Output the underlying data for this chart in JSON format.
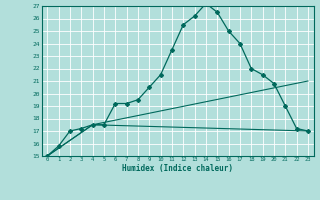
{
  "xlabel": "Humidex (Indice chaleur)",
  "bg_color": "#b2dfdb",
  "grid_color": "#ffffff",
  "line_color": "#00695c",
  "xlim": [
    -0.5,
    23.5
  ],
  "ylim": [
    15,
    27
  ],
  "xticks": [
    0,
    1,
    2,
    3,
    4,
    5,
    6,
    7,
    8,
    9,
    10,
    11,
    12,
    13,
    14,
    15,
    16,
    17,
    18,
    19,
    20,
    21,
    22,
    23
  ],
  "yticks": [
    15,
    16,
    17,
    18,
    19,
    20,
    21,
    22,
    23,
    24,
    25,
    26,
    27
  ],
  "series1_x": [
    0,
    1,
    2,
    3,
    4,
    5,
    6,
    7,
    8,
    9,
    10,
    11,
    12,
    13,
    14,
    15,
    16,
    17,
    18,
    19,
    20,
    21,
    22,
    23
  ],
  "series1_y": [
    15,
    15.8,
    17.0,
    17.2,
    17.5,
    17.5,
    19.2,
    19.2,
    19.5,
    20.5,
    21.5,
    23.5,
    25.5,
    26.2,
    27.2,
    26.5,
    25.0,
    24.0,
    22.0,
    21.5,
    20.8,
    19.0,
    17.2,
    17.0
  ],
  "series2_x": [
    0,
    4,
    23
  ],
  "series2_y": [
    15,
    17.5,
    17.0
  ],
  "series3_x": [
    0,
    4,
    23
  ],
  "series3_y": [
    15,
    17.5,
    21.0
  ]
}
